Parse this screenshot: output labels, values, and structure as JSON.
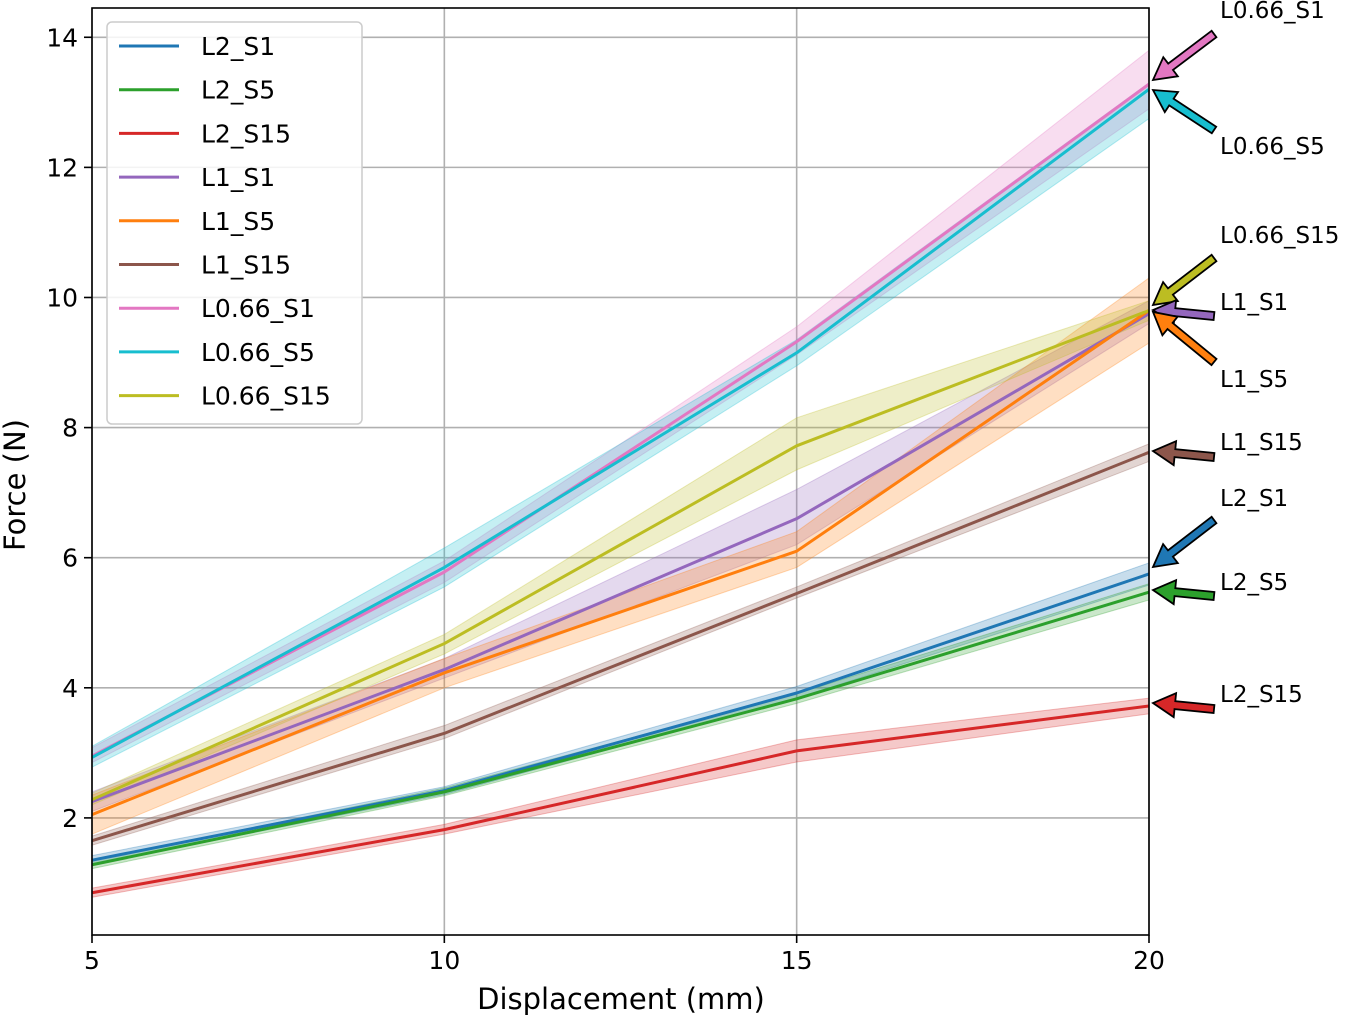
{
  "chart_data": {
    "type": "line",
    "xlabel": "Displacement (mm)",
    "ylabel": "Force (N)",
    "xlim": [
      5,
      20
    ],
    "ylim": [
      0.2,
      14.45
    ],
    "grid": true,
    "legend_position": "top-left",
    "x": [
      5,
      10,
      15,
      20
    ],
    "x_ticks": [
      5,
      10,
      15,
      20
    ],
    "y_ticks": [
      2,
      4,
      6,
      8,
      10,
      12,
      14
    ],
    "series": [
      {
        "name": "L2_S1",
        "color": "#1f77b4",
        "values": [
          1.35,
          2.42,
          3.92,
          5.75
        ],
        "lower": [
          1.28,
          2.36,
          3.84,
          5.58
        ],
        "upper": [
          1.42,
          2.48,
          4.02,
          5.92
        ]
      },
      {
        "name": "L2_S5",
        "color": "#2ca02c",
        "values": [
          1.28,
          2.4,
          3.83,
          5.47
        ],
        "lower": [
          1.22,
          2.34,
          3.76,
          5.35
        ],
        "upper": [
          1.34,
          2.46,
          3.91,
          5.6
        ]
      },
      {
        "name": "L2_S15",
        "color": "#d62728",
        "values": [
          0.85,
          1.82,
          3.03,
          3.72
        ],
        "lower": [
          0.78,
          1.75,
          2.86,
          3.6
        ],
        "upper": [
          0.92,
          1.9,
          3.2,
          3.84
        ]
      },
      {
        "name": "L1_S1",
        "color": "#9467bd",
        "values": [
          2.25,
          4.28,
          6.6,
          9.75
        ],
        "lower": [
          2.1,
          4.15,
          6.2,
          9.6
        ],
        "upper": [
          2.4,
          4.45,
          7.05,
          9.95
        ]
      },
      {
        "name": "L1_S5",
        "color": "#ff7f0e",
        "values": [
          2.05,
          4.23,
          6.1,
          9.8
        ],
        "lower": [
          1.75,
          4.0,
          5.85,
          9.3
        ],
        "upper": [
          2.35,
          4.45,
          6.4,
          10.3
        ]
      },
      {
        "name": "L1_S15",
        "color": "#8c564b",
        "values": [
          1.65,
          3.3,
          5.45,
          7.62
        ],
        "lower": [
          1.58,
          3.22,
          5.38,
          7.48
        ],
        "upper": [
          1.72,
          3.42,
          5.55,
          7.75
        ]
      },
      {
        "name": "L0.66_S1",
        "color": "#e377c2",
        "values": [
          2.95,
          5.78,
          9.32,
          13.28
        ],
        "lower": [
          2.85,
          5.62,
          9.12,
          12.9
        ],
        "upper": [
          3.08,
          5.95,
          9.55,
          13.8
        ]
      },
      {
        "name": "L0.66_S5",
        "color": "#17becf",
        "values": [
          2.93,
          5.85,
          9.15,
          13.2
        ],
        "lower": [
          2.78,
          5.55,
          8.95,
          12.75
        ],
        "upper": [
          3.1,
          6.15,
          9.35,
          13.3
        ]
      },
      {
        "name": "L0.66_S15",
        "color": "#bcbd22",
        "values": [
          2.28,
          4.68,
          7.72,
          9.8
        ],
        "lower": [
          2.2,
          4.52,
          7.35,
          9.65
        ],
        "upper": [
          2.38,
          4.82,
          8.15,
          9.95
        ]
      }
    ],
    "annotations": [
      {
        "label": "L0.66_S1",
        "target": "L0.66_S1"
      },
      {
        "label": "L0.66_S5",
        "target": "L0.66_S5"
      },
      {
        "label": "L0.66_S15",
        "target": "L0.66_S15"
      },
      {
        "label": "L1_S1",
        "target": "L1_S1"
      },
      {
        "label": "L1_S5",
        "target": "L1_S5"
      },
      {
        "label": "L1_S15",
        "target": "L1_S15"
      },
      {
        "label": "L2_S1",
        "target": "L2_S1"
      },
      {
        "label": "L2_S5",
        "target": "L2_S5"
      },
      {
        "label": "L2_S15",
        "target": "L2_S15"
      }
    ]
  }
}
